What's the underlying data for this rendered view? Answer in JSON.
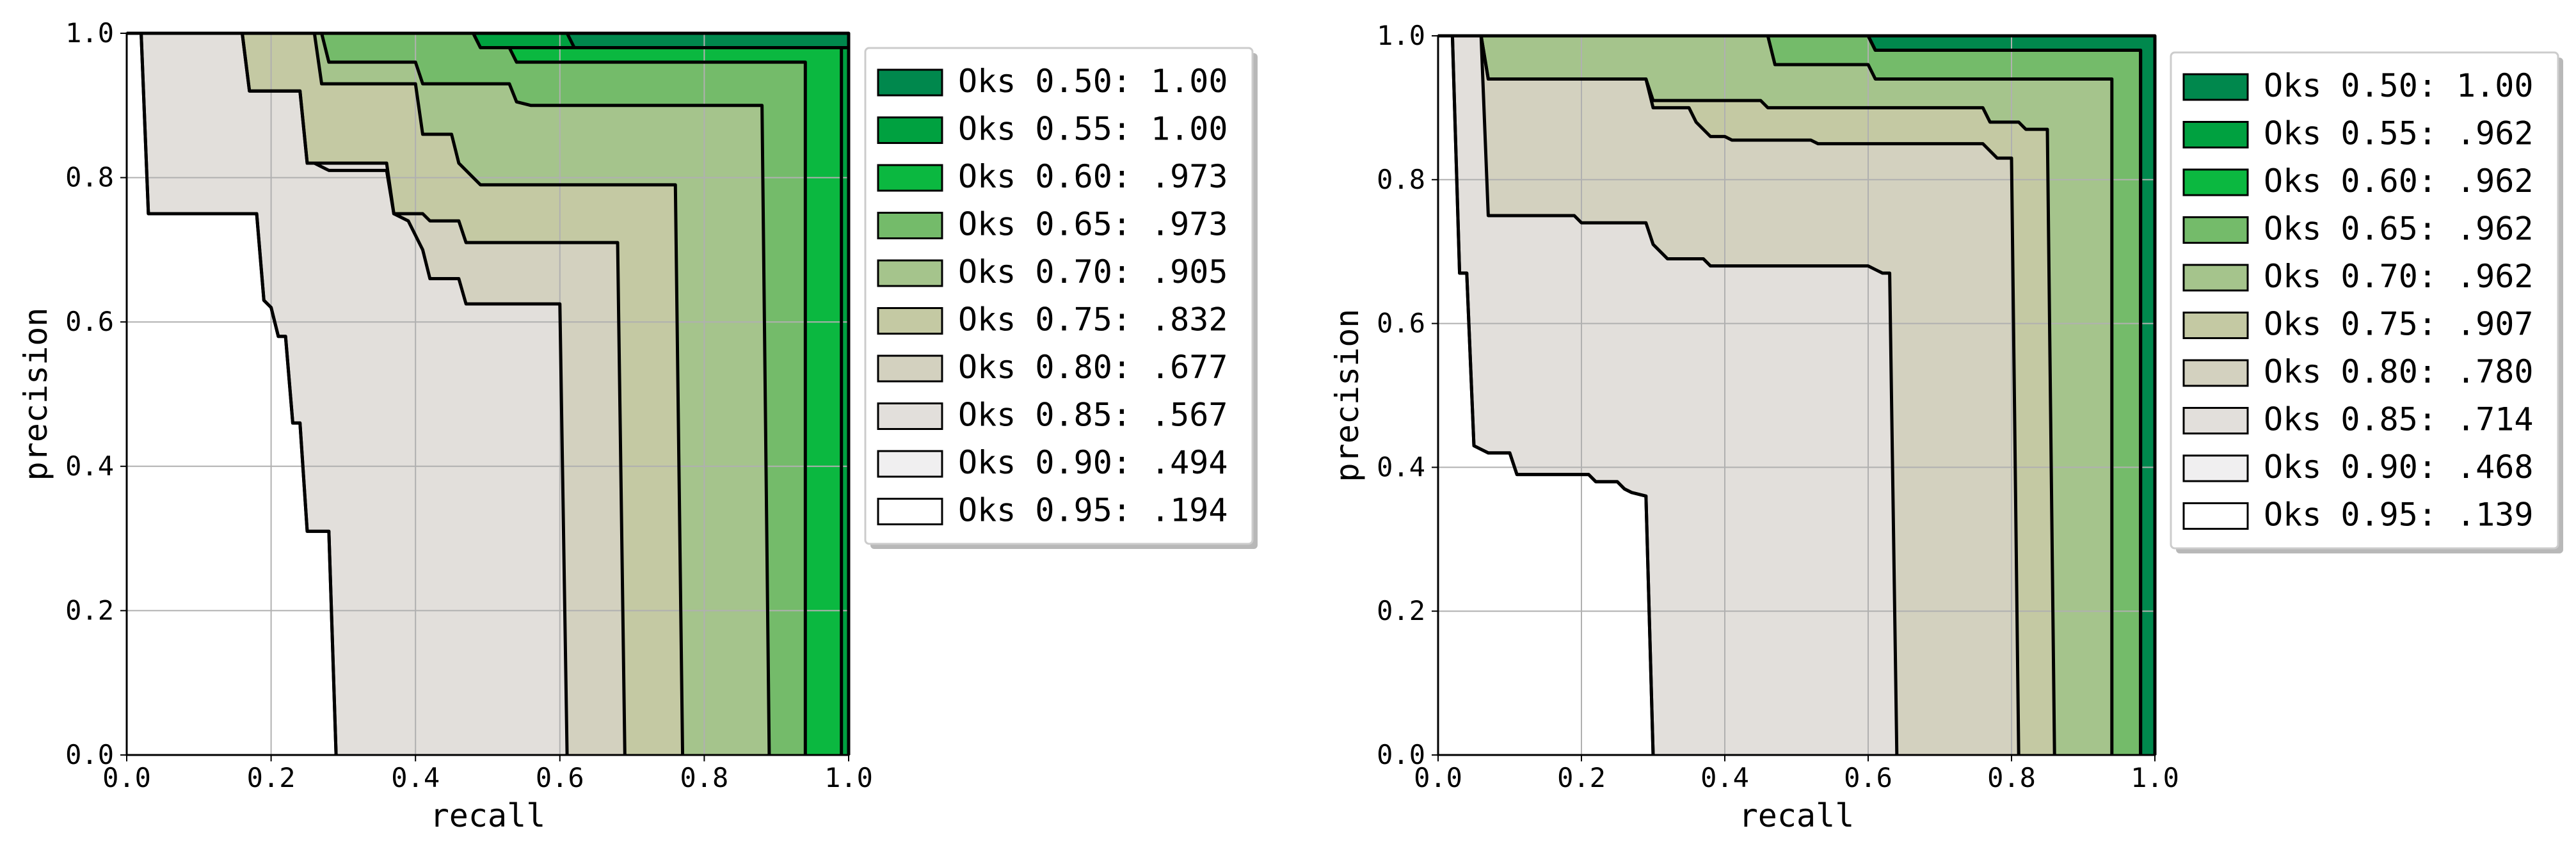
{
  "chart_data": [
    {
      "type": "area",
      "xlabel": "recall",
      "ylabel": "precision",
      "xlim": [
        0.0,
        1.0
      ],
      "ylim": [
        0.0,
        1.0
      ],
      "xticks": [
        "0.0",
        "0.2",
        "0.4",
        "0.6",
        "0.8",
        "1.0"
      ],
      "yticks": [
        "0.0",
        "0.2",
        "0.4",
        "0.6",
        "0.8",
        "1.0"
      ],
      "grid": true,
      "legend_position": "right",
      "series": [
        {
          "name": "Oks 0.50: 1.00",
          "color": "#00884d",
          "points": [
            [
              0,
              1
            ],
            [
              1.0,
              1
            ],
            [
              1.0,
              0
            ]
          ]
        },
        {
          "name": "Oks 0.55: 1.00",
          "color": "#00a140",
          "points": [
            [
              0,
              1
            ],
            [
              0.61,
              1
            ],
            [
              0.62,
              0.98
            ],
            [
              1.0,
              0.98
            ],
            [
              1.0,
              0
            ]
          ]
        },
        {
          "name": "Oks 0.60: .973",
          "color": "#0bb840",
          "points": [
            [
              0,
              1
            ],
            [
              0.48,
              1
            ],
            [
              0.49,
              0.98
            ],
            [
              0.99,
              0.98
            ],
            [
              0.99,
              0
            ]
          ]
        },
        {
          "name": "Oks 0.65: .973",
          "color": "#74bb6a",
          "points": [
            [
              0,
              1
            ],
            [
              0.48,
              1
            ],
            [
              0.49,
              0.98
            ],
            [
              0.53,
              0.98
            ],
            [
              0.54,
              0.96
            ],
            [
              0.93,
              0.96
            ],
            [
              0.94,
              0.96
            ],
            [
              0.94,
              0
            ]
          ]
        },
        {
          "name": "Oks 0.70: .905",
          "color": "#a5c48c",
          "points": [
            [
              0,
              1
            ],
            [
              0.27,
              1
            ],
            [
              0.28,
              0.96
            ],
            [
              0.4,
              0.96
            ],
            [
              0.41,
              0.93
            ],
            [
              0.53,
              0.93
            ],
            [
              0.54,
              0.905
            ],
            [
              0.56,
              0.9
            ],
            [
              0.88,
              0.9
            ],
            [
              0.89,
              0
            ]
          ]
        },
        {
          "name": "Oks 0.75: .832",
          "color": "#c4c9a3",
          "points": [
            [
              0,
              1
            ],
            [
              0.26,
              1
            ],
            [
              0.27,
              0.93
            ],
            [
              0.4,
              0.93
            ],
            [
              0.41,
              0.86
            ],
            [
              0.45,
              0.86
            ],
            [
              0.46,
              0.82
            ],
            [
              0.48,
              0.8
            ],
            [
              0.49,
              0.79
            ],
            [
              0.76,
              0.79
            ],
            [
              0.77,
              0
            ]
          ]
        },
        {
          "name": "Oks 0.80: .677",
          "color": "#d3d1bf",
          "points": [
            [
              0,
              1
            ],
            [
              0.16,
              1
            ],
            [
              0.17,
              0.92
            ],
            [
              0.24,
              0.92
            ],
            [
              0.25,
              0.82
            ],
            [
              0.26,
              0.82
            ],
            [
              0.28,
              0.81
            ],
            [
              0.36,
              0.81
            ],
            [
              0.37,
              0.75
            ],
            [
              0.41,
              0.75
            ],
            [
              0.42,
              0.74
            ],
            [
              0.46,
              0.74
            ],
            [
              0.47,
              0.71
            ],
            [
              0.68,
              0.71
            ],
            [
              0.69,
              0
            ]
          ]
        },
        {
          "name": "Oks 0.85: .567",
          "color": "#e2dfdb",
          "points": [
            [
              0,
              1
            ],
            [
              0.16,
              1
            ],
            [
              0.17,
              0.92
            ],
            [
              0.24,
              0.92
            ],
            [
              0.25,
              0.82
            ],
            [
              0.36,
              0.82
            ],
            [
              0.37,
              0.75
            ],
            [
              0.39,
              0.74
            ],
            [
              0.41,
              0.7
            ],
            [
              0.42,
              0.66
            ],
            [
              0.46,
              0.66
            ],
            [
              0.47,
              0.625
            ],
            [
              0.6,
              0.625
            ],
            [
              0.61,
              0
            ]
          ]
        },
        {
          "name": "Oks 0.90: .494",
          "color": "#f0eff0",
          "points": [
            [
              0,
              1
            ],
            [
              0.02,
              1
            ],
            [
              0.03,
              0.75
            ],
            [
              0.18,
              0.75
            ],
            [
              0.19,
              0.63
            ],
            [
              0.2,
              0.62
            ],
            [
              0.21,
              0.58
            ],
            [
              0.22,
              0.58
            ],
            [
              0.23,
              0.46
            ],
            [
              0.24,
              0.46
            ],
            [
              0.25,
              0.31
            ],
            [
              0.28,
              0.31
            ],
            [
              0.29,
              0
            ]
          ]
        },
        {
          "name": "Oks 0.95: .194",
          "color": "#ffffff",
          "points": [
            [
              0,
              1
            ],
            [
              0.02,
              1
            ],
            [
              0.03,
              0.75
            ],
            [
              0.18,
              0.75
            ],
            [
              0.19,
              0.63
            ],
            [
              0.2,
              0.62
            ],
            [
              0.21,
              0.58
            ],
            [
              0.22,
              0.58
            ],
            [
              0.23,
              0.46
            ],
            [
              0.24,
              0.46
            ],
            [
              0.25,
              0.31
            ],
            [
              0.28,
              0.31
            ],
            [
              0.29,
              0
            ]
          ]
        }
      ]
    },
    {
      "type": "area",
      "xlabel": "recall",
      "ylabel": "precision",
      "xlim": [
        0.0,
        1.0
      ],
      "ylim": [
        0.0,
        1.0
      ],
      "xticks": [
        "0.0",
        "0.2",
        "0.4",
        "0.6",
        "0.8",
        "1.0"
      ],
      "yticks": [
        "0.0",
        "0.2",
        "0.4",
        "0.6",
        "0.8",
        "1.0"
      ],
      "grid": true,
      "legend_position": "right",
      "series": [
        {
          "name": "Oks 0.50: 1.00",
          "color": "#00884d",
          "points": [
            [
              0,
              1
            ],
            [
              1.0,
              1
            ],
            [
              1.0,
              0
            ]
          ]
        },
        {
          "name": "Oks 0.55: .962",
          "color": "#00a140",
          "points": [
            [
              0,
              1
            ],
            [
              0.6,
              1
            ],
            [
              0.61,
              0.98
            ],
            [
              0.98,
              0.98
            ],
            [
              0.98,
              0
            ]
          ]
        },
        {
          "name": "Oks 0.60: .962",
          "color": "#0bb840",
          "points": [
            [
              0,
              1
            ],
            [
              0.6,
              1
            ],
            [
              0.61,
              0.98
            ],
            [
              0.98,
              0.98
            ],
            [
              0.98,
              0
            ]
          ]
        },
        {
          "name": "Oks 0.65: .962",
          "color": "#74bb6a",
          "points": [
            [
              0,
              1
            ],
            [
              0.6,
              1
            ],
            [
              0.61,
              0.98
            ],
            [
              0.98,
              0.98
            ],
            [
              0.98,
              0
            ]
          ]
        },
        {
          "name": "Oks 0.70: .962",
          "color": "#a5c48c",
          "points": [
            [
              0,
              1
            ],
            [
              0.46,
              1
            ],
            [
              0.47,
              0.96
            ],
            [
              0.6,
              0.96
            ],
            [
              0.61,
              0.94
            ],
            [
              0.94,
              0.94
            ],
            [
              0.94,
              0
            ]
          ]
        },
        {
          "name": "Oks 0.75: .907",
          "color": "#c4c9a3",
          "points": [
            [
              0,
              1
            ],
            [
              0.06,
              1
            ],
            [
              0.07,
              0.94
            ],
            [
              0.29,
              0.94
            ],
            [
              0.3,
              0.91
            ],
            [
              0.45,
              0.91
            ],
            [
              0.46,
              0.9
            ],
            [
              0.76,
              0.9
            ],
            [
              0.77,
              0.88
            ],
            [
              0.81,
              0.88
            ],
            [
              0.82,
              0.87
            ],
            [
              0.85,
              0.87
            ],
            [
              0.86,
              0
            ]
          ]
        },
        {
          "name": "Oks 0.80: .780",
          "color": "#d3d1bf",
          "points": [
            [
              0,
              1
            ],
            [
              0.06,
              1
            ],
            [
              0.07,
              0.94
            ],
            [
              0.29,
              0.94
            ],
            [
              0.3,
              0.9
            ],
            [
              0.35,
              0.9
            ],
            [
              0.36,
              0.88
            ],
            [
              0.38,
              0.86
            ],
            [
              0.4,
              0.86
            ],
            [
              0.41,
              0.855
            ],
            [
              0.52,
              0.855
            ],
            [
              0.53,
              0.85
            ],
            [
              0.76,
              0.85
            ],
            [
              0.77,
              0.84
            ],
            [
              0.78,
              0.83
            ],
            [
              0.8,
              0.83
            ],
            [
              0.81,
              0
            ]
          ]
        },
        {
          "name": "Oks 0.85: .714",
          "color": "#e2dfdb",
          "points": [
            [
              0,
              1
            ],
            [
              0.06,
              1
            ],
            [
              0.07,
              0.75
            ],
            [
              0.19,
              0.75
            ],
            [
              0.2,
              0.74
            ],
            [
              0.29,
              0.74
            ],
            [
              0.3,
              0.71
            ],
            [
              0.31,
              0.7
            ],
            [
              0.32,
              0.69
            ],
            [
              0.37,
              0.69
            ],
            [
              0.38,
              0.68
            ],
            [
              0.6,
              0.68
            ],
            [
              0.61,
              0.675
            ],
            [
              0.62,
              0.67
            ],
            [
              0.63,
              0.67
            ],
            [
              0.64,
              0
            ]
          ]
        },
        {
          "name": "Oks 0.90: .468",
          "color": "#f0eff0",
          "points": [
            [
              0,
              1
            ],
            [
              0.02,
              1
            ],
            [
              0.03,
              0.67
            ],
            [
              0.04,
              0.67
            ],
            [
              0.05,
              0.43
            ],
            [
              0.06,
              0.425
            ],
            [
              0.07,
              0.42
            ],
            [
              0.1,
              0.42
            ],
            [
              0.11,
              0.39
            ],
            [
              0.21,
              0.39
            ],
            [
              0.22,
              0.38
            ],
            [
              0.25,
              0.38
            ],
            [
              0.26,
              0.37
            ],
            [
              0.27,
              0.365
            ],
            [
              0.29,
              0.36
            ],
            [
              0.3,
              0
            ]
          ]
        },
        {
          "name": "Oks 0.95: .139",
          "color": "#ffffff",
          "points": [
            [
              0,
              1
            ],
            [
              0.02,
              1
            ],
            [
              0.03,
              0.67
            ],
            [
              0.04,
              0.67
            ],
            [
              0.05,
              0.43
            ],
            [
              0.06,
              0.425
            ],
            [
              0.07,
              0.42
            ],
            [
              0.1,
              0.42
            ],
            [
              0.11,
              0.39
            ],
            [
              0.21,
              0.39
            ],
            [
              0.22,
              0.38
            ],
            [
              0.25,
              0.38
            ],
            [
              0.26,
              0.37
            ],
            [
              0.27,
              0.365
            ],
            [
              0.29,
              0.36
            ],
            [
              0.3,
              0
            ]
          ]
        }
      ]
    }
  ]
}
